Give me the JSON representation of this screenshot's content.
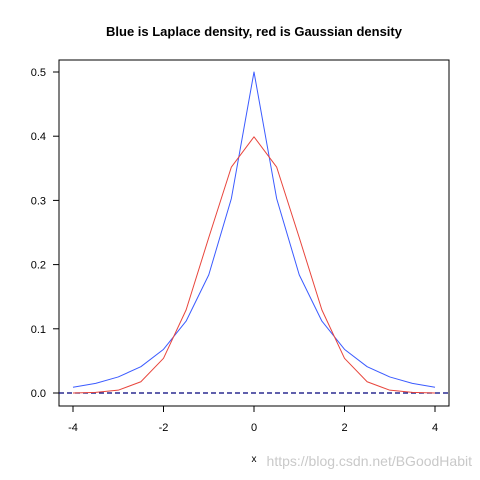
{
  "chart_data": {
    "type": "line",
    "title": "Blue is Laplace density, red is Gaussian density",
    "xlabel": "x",
    "ylabel": "",
    "xlim": [
      -4,
      4
    ],
    "ylim": [
      0,
      0.5
    ],
    "x_ticks": [
      "-4",
      "-2",
      "0",
      "2",
      "4"
    ],
    "y_ticks": [
      "0.0",
      "0.1",
      "0.2",
      "0.3",
      "0.4",
      "0.5"
    ],
    "x": [
      -4,
      -3.5,
      -3,
      -2.5,
      -2,
      -1.5,
      -1,
      -0.5,
      0,
      0.5,
      1,
      1.5,
      2,
      2.5,
      3,
      3.5,
      4
    ],
    "series": [
      {
        "color": "#3b5bff",
        "values": [
          0.009,
          0.015,
          0.025,
          0.041,
          0.068,
          0.112,
          0.184,
          0.303,
          0.5,
          0.303,
          0.184,
          0.112,
          0.068,
          0.041,
          0.025,
          0.015,
          0.009
        ]
      },
      {
        "color": "#e8453c",
        "values": [
          0.0001,
          0.0009,
          0.0044,
          0.0175,
          0.054,
          0.1295,
          0.242,
          0.352,
          0.399,
          0.352,
          0.242,
          0.1295,
          0.054,
          0.0175,
          0.0044,
          0.0009,
          0.0001
        ]
      }
    ],
    "hline": {
      "y": 0,
      "style": "dashed",
      "color": "#00007a"
    },
    "grid": false,
    "box": true
  },
  "watermark": "https://blog.csdn.net/BGoodHabit"
}
